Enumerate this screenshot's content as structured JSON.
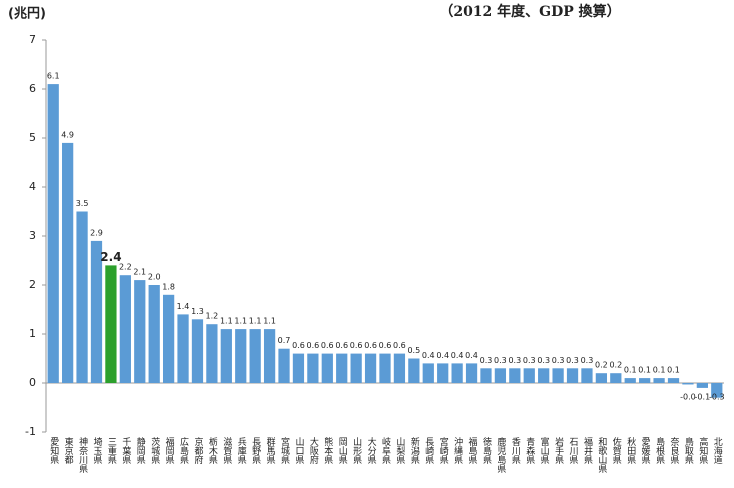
{
  "chart_data": {
    "type": "bar",
    "y_label": "(兆円)",
    "subtitle": "（2012 年度、GDP 換算）",
    "categories": [
      "愛知県",
      "東京都",
      "神奈川県",
      "埼玉県",
      "三重県",
      "千葉県",
      "静岡県",
      "茨城県",
      "福岡県",
      "広島県",
      "京都府",
      "栃木県",
      "滋賀県",
      "兵庫県",
      "長野県",
      "群馬県",
      "宮城県",
      "山口県",
      "大阪府",
      "熊本県",
      "岡山県",
      "山形県",
      "大分県",
      "岐阜県",
      "山梨県",
      "新潟県",
      "長崎県",
      "宮崎県",
      "沖縄県",
      "福島県",
      "徳島県",
      "鹿児島県",
      "香川県",
      "青森県",
      "富山県",
      "岩手県",
      "石川県",
      "福井県",
      "和歌山県",
      "佐賀県",
      "秋田県",
      "愛媛県",
      "島根県",
      "奈良県",
      "鳥取県",
      "高知県",
      "北海道"
    ],
    "values": [
      6.1,
      4.9,
      3.5,
      2.9,
      2.4,
      2.2,
      2.1,
      2.0,
      1.8,
      1.4,
      1.3,
      1.2,
      1.1,
      1.1,
      1.1,
      1.1,
      0.7,
      0.6,
      0.6,
      0.6,
      0.6,
      0.6,
      0.6,
      0.6,
      0.6,
      0.5,
      0.4,
      0.4,
      0.4,
      0.4,
      0.3,
      0.3,
      0.3,
      0.3,
      0.3,
      0.3,
      0.3,
      0.3,
      0.2,
      0.2,
      0.1,
      0.1,
      0.1,
      0.1,
      -0.03,
      -0.1,
      -0.3
    ],
    "value_labels": [
      "6.1",
      "4.9",
      "3.5",
      "2.9",
      "2.4",
      "2.2",
      "2.1",
      "2.0",
      "1.8",
      "1.4",
      "1.3",
      "1.2",
      "1.1",
      "1.1",
      "1.1",
      "1.1",
      "0.7",
      "0.6",
      "0.6",
      "0.6",
      "0.6",
      "0.6",
      "0.6",
      "0.6",
      "0.6",
      "0.5",
      "0.4",
      "0.4",
      "0.4",
      "0.4",
      "0.3",
      "0.3",
      "0.3",
      "0.3",
      "0.3",
      "0.3",
      "0.3",
      "0.3",
      "0.2",
      "0.2",
      "0.1",
      "0.1",
      "0.1",
      "0.1",
      "-0.0",
      "-0.1",
      "-0.3"
    ],
    "colors": [
      "#5b9bd5",
      "#5b9bd5",
      "#5b9bd5",
      "#5b9bd5",
      "#2ca02c",
      "#5b9bd5",
      "#5b9bd5",
      "#5b9bd5",
      "#5b9bd5",
      "#5b9bd5",
      "#5b9bd5",
      "#5b9bd5",
      "#5b9bd5",
      "#5b9bd5",
      "#5b9bd5",
      "#5b9bd5",
      "#5b9bd5",
      "#5b9bd5",
      "#5b9bd5",
      "#5b9bd5",
      "#5b9bd5",
      "#5b9bd5",
      "#5b9bd5",
      "#5b9bd5",
      "#5b9bd5",
      "#5b9bd5",
      "#5b9bd5",
      "#5b9bd5",
      "#5b9bd5",
      "#5b9bd5",
      "#5b9bd5",
      "#5b9bd5",
      "#5b9bd5",
      "#5b9bd5",
      "#5b9bd5",
      "#5b9bd5",
      "#5b9bd5",
      "#5b9bd5",
      "#5b9bd5",
      "#5b9bd5",
      "#5b9bd5",
      "#5b9bd5",
      "#5b9bd5",
      "#5b9bd5",
      "#5b9bd5",
      "#5b9bd5",
      "#5b9bd5"
    ],
    "ylim": [
      -1,
      7
    ],
    "yticks": [
      -1,
      0,
      1,
      2,
      3,
      4,
      5,
      6,
      7
    ]
  }
}
